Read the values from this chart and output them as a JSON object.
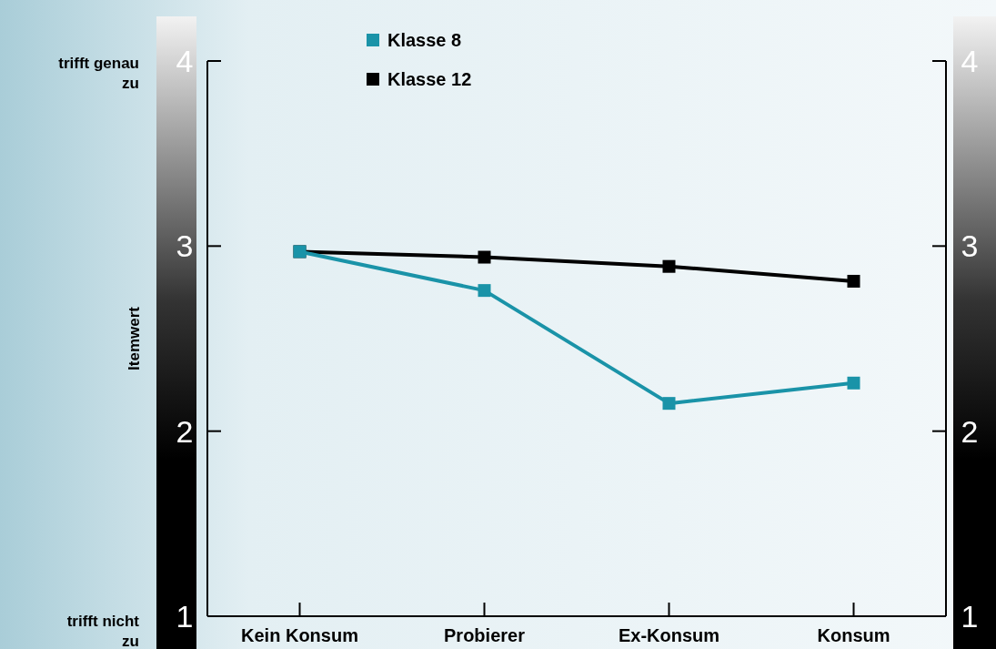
{
  "chart_data": {
    "type": "line",
    "ylabel": "Itemwert",
    "categories": [
      "Kein Konsum",
      "Probierer",
      "Ex-Konsum",
      "Konsum"
    ],
    "series": [
      {
        "name": "Klasse 8",
        "color": "#1a93a8",
        "values": [
          2.97,
          2.76,
          2.15,
          2.26
        ]
      },
      {
        "name": "Klasse 12",
        "color": "#000000",
        "values": [
          2.97,
          2.94,
          2.89,
          2.81
        ]
      }
    ],
    "ylim": [
      1,
      4
    ],
    "yticks": [
      1,
      2,
      3,
      4
    ],
    "y2lim": [
      1,
      4
    ],
    "y2ticks": [
      1,
      2,
      3,
      4
    ],
    "annotations": [
      "trifft genau zu",
      "trifft nicht zu"
    ],
    "marker": "square",
    "line_style": "solid",
    "legend": "top left"
  }
}
